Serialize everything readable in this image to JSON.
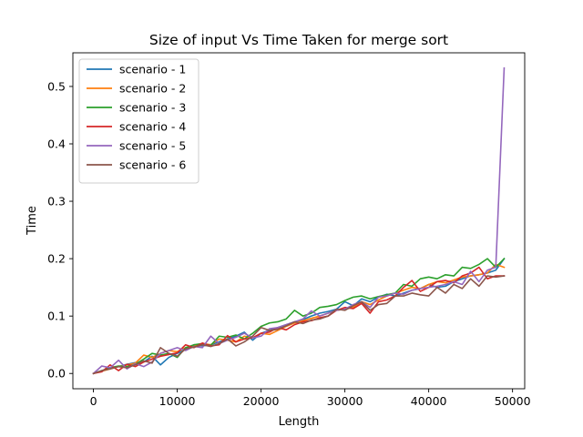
{
  "chart_data": {
    "type": "line",
    "title": "Size of input Vs Time Taken for merge sort",
    "xlabel": "Length",
    "ylabel": "Time",
    "xlim": [
      -2450,
      51450
    ],
    "ylim": [
      -0.0266,
      0.5586
    ],
    "x_ticks": [
      0,
      10000,
      20000,
      30000,
      40000,
      50000
    ],
    "x_tick_labels": [
      "0",
      "10000",
      "20000",
      "30000",
      "40000",
      "50000"
    ],
    "y_ticks": [
      0.0,
      0.1,
      0.2,
      0.3,
      0.4,
      0.5
    ],
    "y_tick_labels": [
      "0.0",
      "0.1",
      "0.2",
      "0.3",
      "0.4",
      "0.5"
    ],
    "grid": false,
    "legend_position": "upper-left",
    "x": [
      0,
      1000,
      2000,
      3000,
      4000,
      5000,
      6000,
      7000,
      8000,
      9000,
      10000,
      11000,
      12000,
      13000,
      14000,
      15000,
      16000,
      17000,
      18000,
      19000,
      20000,
      21000,
      22000,
      23000,
      24000,
      25000,
      26000,
      27000,
      28000,
      29000,
      30000,
      31000,
      32000,
      33000,
      34000,
      35000,
      36000,
      37000,
      38000,
      39000,
      40000,
      41000,
      42000,
      43000,
      44000,
      45000,
      46000,
      47000,
      48000,
      49000
    ],
    "series": [
      {
        "name": "scenario - 1",
        "color": "#1f77b4",
        "values": [
          0.0,
          0.005,
          0.009,
          0.012,
          0.016,
          0.019,
          0.02,
          0.03,
          0.015,
          0.028,
          0.035,
          0.042,
          0.05,
          0.048,
          0.05,
          0.055,
          0.06,
          0.065,
          0.072,
          0.058,
          0.07,
          0.075,
          0.08,
          0.085,
          0.09,
          0.094,
          0.1,
          0.105,
          0.108,
          0.112,
          0.125,
          0.118,
          0.13,
          0.125,
          0.133,
          0.138,
          0.135,
          0.14,
          0.145,
          0.148,
          0.155,
          0.15,
          0.152,
          0.16,
          0.165,
          0.17,
          0.172,
          0.175,
          0.18,
          0.2
        ]
      },
      {
        "name": "scenario - 2",
        "color": "#ff7f0e",
        "values": [
          0.0,
          0.004,
          0.008,
          0.012,
          0.015,
          0.018,
          0.032,
          0.028,
          0.035,
          0.04,
          0.038,
          0.045,
          0.048,
          0.052,
          0.05,
          0.06,
          0.058,
          0.055,
          0.065,
          0.062,
          0.07,
          0.068,
          0.075,
          0.082,
          0.088,
          0.092,
          0.096,
          0.1,
          0.105,
          0.11,
          0.112,
          0.115,
          0.125,
          0.12,
          0.128,
          0.135,
          0.14,
          0.145,
          0.15,
          0.148,
          0.155,
          0.16,
          0.158,
          0.163,
          0.168,
          0.17,
          0.172,
          0.175,
          0.19,
          0.185
        ]
      },
      {
        "name": "scenario - 3",
        "color": "#2ca02c",
        "values": [
          0.0,
          0.005,
          0.01,
          0.013,
          0.012,
          0.016,
          0.025,
          0.035,
          0.032,
          0.035,
          0.028,
          0.045,
          0.05,
          0.052,
          0.049,
          0.065,
          0.063,
          0.067,
          0.06,
          0.07,
          0.082,
          0.088,
          0.09,
          0.095,
          0.11,
          0.1,
          0.105,
          0.115,
          0.117,
          0.12,
          0.127,
          0.133,
          0.135,
          0.13,
          0.134,
          0.137,
          0.14,
          0.155,
          0.152,
          0.165,
          0.168,
          0.165,
          0.172,
          0.17,
          0.185,
          0.183,
          0.19,
          0.2,
          0.185,
          0.2
        ]
      },
      {
        "name": "scenario - 4",
        "color": "#d62728",
        "values": [
          0.0,
          0.003,
          0.015,
          0.005,
          0.016,
          0.012,
          0.02,
          0.025,
          0.03,
          0.033,
          0.036,
          0.05,
          0.045,
          0.053,
          0.048,
          0.05,
          0.066,
          0.055,
          0.06,
          0.062,
          0.07,
          0.072,
          0.08,
          0.076,
          0.085,
          0.09,
          0.092,
          0.097,
          0.1,
          0.11,
          0.115,
          0.113,
          0.122,
          0.105,
          0.125,
          0.128,
          0.135,
          0.15,
          0.162,
          0.143,
          0.15,
          0.16,
          0.162,
          0.158,
          0.17,
          0.175,
          0.185,
          0.165,
          0.17,
          0.17
        ]
      },
      {
        "name": "scenario - 5",
        "color": "#9467bd",
        "values": [
          0.0,
          0.013,
          0.01,
          0.023,
          0.008,
          0.017,
          0.012,
          0.02,
          0.035,
          0.04,
          0.045,
          0.04,
          0.047,
          0.045,
          0.065,
          0.052,
          0.058,
          0.063,
          0.07,
          0.062,
          0.065,
          0.078,
          0.08,
          0.085,
          0.09,
          0.095,
          0.109,
          0.1,
          0.105,
          0.11,
          0.112,
          0.12,
          0.125,
          0.115,
          0.133,
          0.135,
          0.14,
          0.138,
          0.145,
          0.148,
          0.15,
          0.152,
          0.155,
          0.16,
          0.155,
          0.178,
          0.16,
          0.18,
          0.185,
          0.532
        ]
      },
      {
        "name": "scenario - 6",
        "color": "#8c564b",
        "values": [
          0.0,
          0.005,
          0.008,
          0.012,
          0.01,
          0.015,
          0.022,
          0.018,
          0.045,
          0.035,
          0.03,
          0.043,
          0.046,
          0.05,
          0.047,
          0.052,
          0.06,
          0.048,
          0.055,
          0.065,
          0.08,
          0.075,
          0.077,
          0.083,
          0.09,
          0.087,
          0.093,
          0.095,
          0.1,
          0.112,
          0.11,
          0.118,
          0.125,
          0.11,
          0.12,
          0.122,
          0.135,
          0.135,
          0.14,
          0.137,
          0.135,
          0.15,
          0.14,
          0.155,
          0.148,
          0.165,
          0.152,
          0.17,
          0.168,
          0.17
        ]
      }
    ]
  }
}
